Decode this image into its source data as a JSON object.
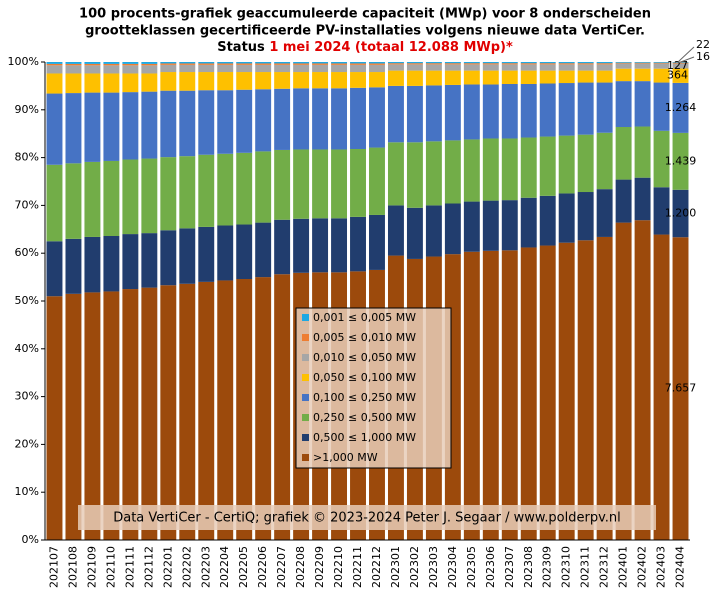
{
  "chart_data": {
    "type": "stacked_bar",
    "title_lines": [
      "100 procents-grafiek geaccumuleerde capaciteit (MWp) voor 8 onderscheiden",
      "grootteklassen gecertificeerde PV-installaties volgens nieuwe data VertiCer."
    ],
    "title_status": "Status",
    "title_highlight": "1 mei 2024 (totaal 12.088 MWp)*",
    "source": "Data VertiCer - CertiQ; grafiek © 2023-2024 Peter J. Segaar / www.polderpv.nl",
    "categories": [
      "202107",
      "202108",
      "202109",
      "202110",
      "202111",
      "202112",
      "202201",
      "202202",
      "202203",
      "202204",
      "202205",
      "202206",
      "202207",
      "202208",
      "202209",
      "202210",
      "202211",
      "202212",
      "202301",
      "202302",
      "202303",
      "202304",
      "202305",
      "202306",
      "202307",
      "202308",
      "202309",
      "202310",
      "202311",
      "202312",
      "202401",
      "202402",
      "202403",
      "202404"
    ],
    "ylim": [
      0,
      100
    ],
    "yticks": [
      {
        "value": 0,
        "label": "0%"
      },
      {
        "value": 10,
        "label": "10%"
      },
      {
        "value": 20,
        "label": "20%"
      },
      {
        "value": 30,
        "label": "30%"
      },
      {
        "value": 40,
        "label": "40%"
      },
      {
        "value": 50,
        "label": "50%"
      },
      {
        "value": 60,
        "label": "60%"
      },
      {
        "value": 70,
        "label": "70%"
      },
      {
        "value": 80,
        "label": "80%"
      },
      {
        "value": 90,
        "label": "90%"
      },
      {
        "value": 100,
        "label": "100%"
      }
    ],
    "series": [
      {
        "name": ">1,000 MW",
        "color": "#9c4a0c",
        "values": [
          51.0,
          51.5,
          51.8,
          52.0,
          52.5,
          52.8,
          53.3,
          53.6,
          54.0,
          54.3,
          54.6,
          55.0,
          55.6,
          55.9,
          56.0,
          56.0,
          56.2,
          56.5,
          59.5,
          58.8,
          59.3,
          59.8,
          60.3,
          60.5,
          60.6,
          61.2,
          61.6,
          62.2,
          62.7,
          63.4,
          66.4,
          66.9,
          63.9,
          63.34
        ]
      },
      {
        "name": "0,500 ≤  1,000 MW",
        "color": "#213d6e",
        "values": [
          11.5,
          11.5,
          11.6,
          11.6,
          11.5,
          11.4,
          11.5,
          11.6,
          11.5,
          11.5,
          11.4,
          11.4,
          11.4,
          11.3,
          11.3,
          11.3,
          11.4,
          11.5,
          10.5,
          10.7,
          10.7,
          10.6,
          10.5,
          10.5,
          10.5,
          10.4,
          10.4,
          10.3,
          10.1,
          10.0,
          9.0,
          8.9,
          9.9,
          9.93
        ]
      },
      {
        "name": "0,250 ≤  0,500 MW",
        "color": "#72ad48",
        "values": [
          16.0,
          15.8,
          15.7,
          15.7,
          15.6,
          15.6,
          15.3,
          15.1,
          15.1,
          15.0,
          15.0,
          14.9,
          14.6,
          14.5,
          14.4,
          14.4,
          14.2,
          14.1,
          13.2,
          13.7,
          13.4,
          13.2,
          13.0,
          13.0,
          12.9,
          12.6,
          12.4,
          12.1,
          12.0,
          11.8,
          11.0,
          10.7,
          11.8,
          11.9
        ]
      },
      {
        "name": "0,100 ≤  0,250 MW",
        "color": "#4673c4",
        "values": [
          14.9,
          14.7,
          14.5,
          14.3,
          14.1,
          14.0,
          13.9,
          13.7,
          13.5,
          13.3,
          13.2,
          13.0,
          12.8,
          12.8,
          12.8,
          12.8,
          12.8,
          12.6,
          11.8,
          11.8,
          11.7,
          11.6,
          11.5,
          11.3,
          11.4,
          11.2,
          11.1,
          11.0,
          10.9,
          10.5,
          9.6,
          9.5,
          10.1,
          10.46
        ]
      },
      {
        "name": "0,050 ≤  0,100 MW",
        "color": "#fec000",
        "values": [
          4.2,
          4.1,
          4.0,
          4.0,
          3.9,
          3.8,
          3.9,
          3.9,
          3.8,
          3.8,
          3.7,
          3.6,
          3.5,
          3.4,
          3.4,
          3.4,
          3.3,
          3.2,
          3.2,
          3.2,
          3.1,
          3.0,
          2.9,
          2.9,
          2.8,
          2.8,
          2.7,
          2.6,
          2.5,
          2.5,
          2.6,
          2.6,
          2.9,
          3.01
        ]
      },
      {
        "name": "0,010 ≤  0,050 MW",
        "color": "#a6a6a6",
        "values": [
          1.7,
          1.7,
          1.7,
          1.7,
          1.7,
          1.7,
          1.5,
          1.5,
          1.5,
          1.5,
          1.5,
          1.5,
          1.5,
          1.5,
          1.5,
          1.5,
          1.5,
          1.5,
          1.3,
          1.3,
          1.3,
          1.3,
          1.3,
          1.3,
          1.3,
          1.3,
          1.3,
          1.3,
          1.3,
          1.3,
          1.1,
          1.1,
          1.1,
          1.05
        ]
      },
      {
        "name": "0,005 ≤  0,010 MW",
        "color": "#ee7d31",
        "values": [
          0.3,
          0.3,
          0.3,
          0.3,
          0.3,
          0.3,
          0.3,
          0.3,
          0.3,
          0.3,
          0.3,
          0.3,
          0.3,
          0.3,
          0.3,
          0.3,
          0.3,
          0.3,
          0.25,
          0.25,
          0.25,
          0.25,
          0.25,
          0.25,
          0.25,
          0.25,
          0.25,
          0.25,
          0.25,
          0.25,
          0.15,
          0.15,
          0.15,
          0.18
        ]
      },
      {
        "name": "0,001 ≤  0,005 MW",
        "color": "#1ea8e2",
        "values": [
          0.4,
          0.4,
          0.4,
          0.4,
          0.4,
          0.4,
          0.3,
          0.3,
          0.3,
          0.3,
          0.3,
          0.3,
          0.3,
          0.3,
          0.3,
          0.3,
          0.3,
          0.3,
          0.25,
          0.25,
          0.25,
          0.25,
          0.25,
          0.25,
          0.25,
          0.25,
          0.25,
          0.25,
          0.25,
          0.25,
          0.15,
          0.15,
          0.15,
          0.13
        ]
      }
    ],
    "annotations": [
      "7.657",
      "1.200",
      "1.439",
      "1.264",
      "364",
      "127",
      "22",
      "16"
    ]
  }
}
